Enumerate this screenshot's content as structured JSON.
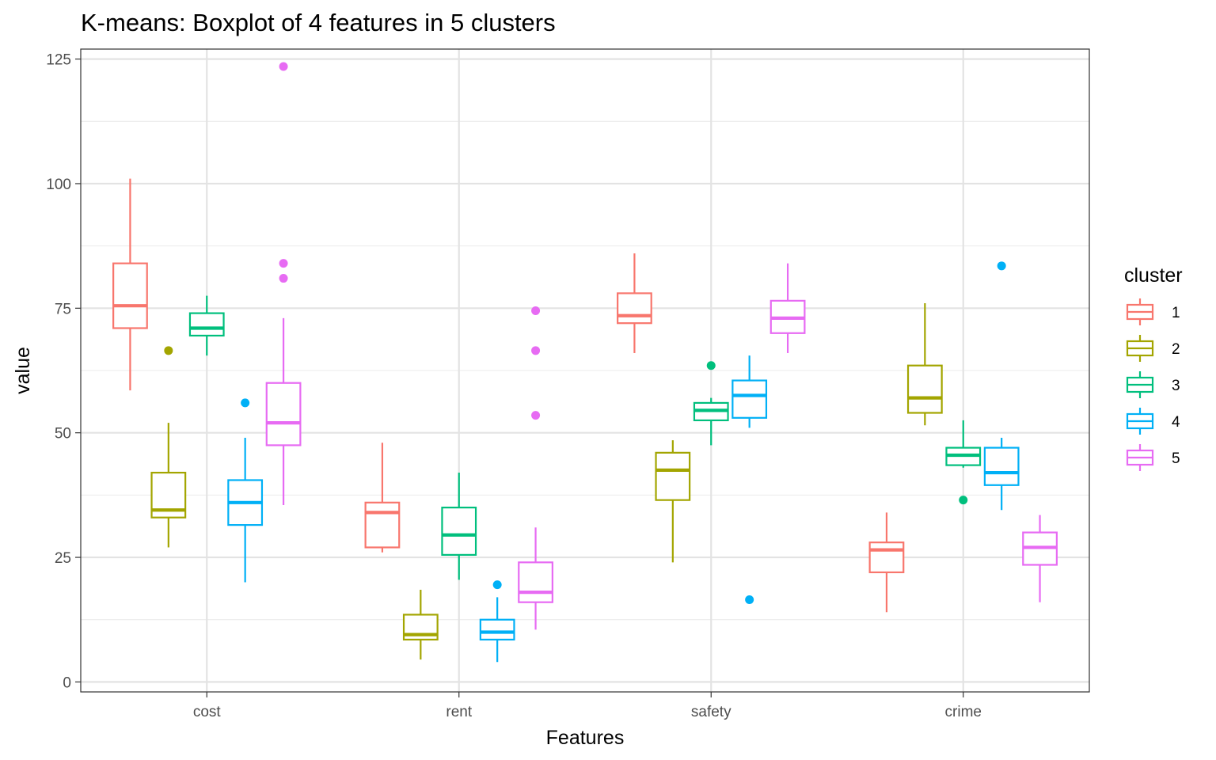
{
  "chart_data": {
    "type": "boxplot",
    "title": "K-means: Boxplot of 4 features in 5 clusters",
    "xlabel": "Features",
    "ylabel": "value",
    "categories": [
      "cost",
      "rent",
      "safety",
      "crime"
    ],
    "ylim": [
      -2,
      127
    ],
    "yticks": [
      0,
      25,
      50,
      75,
      100,
      125
    ],
    "grid": true,
    "legend": {
      "title": "cluster",
      "placement": "right"
    },
    "series": [
      {
        "name": "1",
        "color": "#F8766D",
        "boxes": [
          {
            "whisker_low": 58.5,
            "q1": 71,
            "median": 75.5,
            "q3": 84,
            "whisker_high": 101,
            "outliers": []
          },
          {
            "whisker_low": 26,
            "q1": 27,
            "median": 34,
            "q3": 36,
            "whisker_high": 48,
            "outliers": []
          },
          {
            "whisker_low": 66,
            "q1": 72,
            "median": 73.5,
            "q3": 78,
            "whisker_high": 86,
            "outliers": []
          },
          {
            "whisker_low": 14,
            "q1": 22,
            "median": 26.5,
            "q3": 28,
            "whisker_high": 34,
            "outliers": []
          }
        ]
      },
      {
        "name": "2",
        "color": "#A3A500",
        "boxes": [
          {
            "whisker_low": 27,
            "q1": 33,
            "median": 34.5,
            "q3": 42,
            "whisker_high": 52,
            "outliers": [
              66.5
            ]
          },
          {
            "whisker_low": 4.5,
            "q1": 8.5,
            "median": 9.5,
            "q3": 13.5,
            "whisker_high": 18.5,
            "outliers": []
          },
          {
            "whisker_low": 24,
            "q1": 36.5,
            "median": 42.5,
            "q3": 46,
            "whisker_high": 48.5,
            "outliers": []
          },
          {
            "whisker_low": 51.5,
            "q1": 54,
            "median": 57,
            "q3": 63.5,
            "whisker_high": 76,
            "outliers": []
          }
        ]
      },
      {
        "name": "3",
        "color": "#00BF7D",
        "boxes": [
          {
            "whisker_low": 65.5,
            "q1": 69.5,
            "median": 71,
            "q3": 74,
            "whisker_high": 77.5,
            "outliers": []
          },
          {
            "whisker_low": 20.5,
            "q1": 25.5,
            "median": 29.5,
            "q3": 35,
            "whisker_high": 42,
            "outliers": []
          },
          {
            "whisker_low": 47.5,
            "q1": 52.5,
            "median": 54.5,
            "q3": 56,
            "whisker_high": 57,
            "outliers": [
              63.5
            ]
          },
          {
            "whisker_low": 43,
            "q1": 43.5,
            "median": 45.5,
            "q3": 47,
            "whisker_high": 52.5,
            "outliers": [
              36.5
            ]
          }
        ]
      },
      {
        "name": "4",
        "color": "#00B0F6",
        "boxes": [
          {
            "whisker_low": 20,
            "q1": 31.5,
            "median": 36,
            "q3": 40.5,
            "whisker_high": 49,
            "outliers": [
              56
            ]
          },
          {
            "whisker_low": 4,
            "q1": 8.5,
            "median": 10,
            "q3": 12.5,
            "whisker_high": 17,
            "outliers": [
              19.5
            ]
          },
          {
            "whisker_low": 51,
            "q1": 53,
            "median": 57.5,
            "q3": 60.5,
            "whisker_high": 65.5,
            "outliers": [
              16.5
            ]
          },
          {
            "whisker_low": 34.5,
            "q1": 39.5,
            "median": 42,
            "q3": 47,
            "whisker_high": 49,
            "outliers": [
              83.5
            ]
          }
        ]
      },
      {
        "name": "5",
        "color": "#E76BF3",
        "boxes": [
          {
            "whisker_low": 35.5,
            "q1": 47.5,
            "median": 52,
            "q3": 60,
            "whisker_high": 73,
            "outliers": [
              81,
              84,
              123.5
            ]
          },
          {
            "whisker_low": 10.5,
            "q1": 16,
            "median": 18,
            "q3": 24,
            "whisker_high": 31,
            "outliers": [
              53.5,
              66.5,
              74.5
            ]
          },
          {
            "whisker_low": 66,
            "q1": 70,
            "median": 73,
            "q3": 76.5,
            "whisker_high": 84,
            "outliers": []
          },
          {
            "whisker_low": 16,
            "q1": 23.5,
            "median": 27,
            "q3": 30,
            "whisker_high": 33.5,
            "outliers": []
          }
        ]
      }
    ]
  }
}
